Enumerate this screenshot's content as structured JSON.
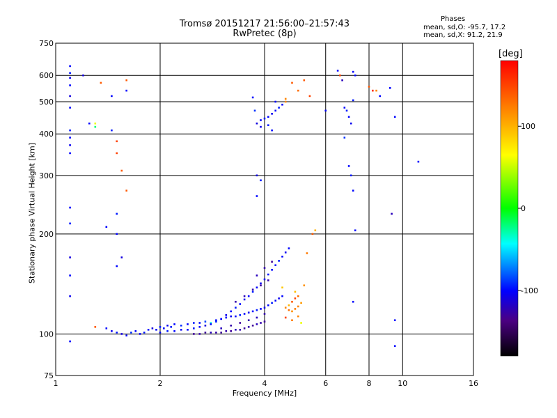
{
  "title": "Tromsø 20151217 21:56:00–21:57:43",
  "subtitle": "RwPretec (8p)",
  "info": {
    "heading": "Phases",
    "line1": "mean, sd,O: -95.7, 17.2",
    "line2": "mean, sd,X:  91.2, 21.9"
  },
  "colorbar": {
    "unit": "[deg]",
    "ticks": [
      "100",
      "0",
      "-100"
    ],
    "tick_values": [
      100,
      0,
      -100
    ],
    "range": [
      -180,
      180
    ]
  },
  "chart_data": {
    "type": "scatter",
    "title": "Tromsø 20151217 21:56:00–21:57:43",
    "subtitle": "RwPretec (8p)",
    "xlabel": "Frequency [MHz]",
    "ylabel": "Stationary phase Virtual Height [km]",
    "xscale": "log",
    "yscale": "log",
    "xlim": [
      1,
      16
    ],
    "ylim": [
      75,
      750
    ],
    "xticks": [
      1,
      2,
      4,
      6,
      8,
      10,
      16
    ],
    "xtick_labels": [
      "1",
      "2",
      "4",
      "6",
      "8",
      "10",
      "16"
    ],
    "yticks": [
      75,
      100,
      200,
      300,
      400,
      500,
      600,
      750
    ],
    "ytick_labels": [
      "75",
      "100",
      "200",
      "300",
      "400",
      "500",
      "600",
      "750"
    ],
    "grid": true,
    "color_variable": "phase [deg]",
    "points": [
      [
        1.4,
        104,
        -100
      ],
      [
        1.45,
        102,
        -105
      ],
      [
        1.5,
        101,
        -95
      ],
      [
        1.55,
        100,
        -110
      ],
      [
        1.6,
        99,
        -100
      ],
      [
        1.65,
        101,
        -90
      ],
      [
        1.7,
        102,
        -100
      ],
      [
        1.75,
        100,
        -105
      ],
      [
        1.8,
        101,
        -95
      ],
      [
        1.85,
        103,
        -100
      ],
      [
        1.9,
        104,
        -110
      ],
      [
        1.95,
        103,
        -100
      ],
      [
        2.0,
        105,
        -95
      ],
      [
        2.05,
        104,
        -100
      ],
      [
        2.1,
        106,
        -105
      ],
      [
        2.15,
        105,
        -95
      ],
      [
        2.2,
        107,
        -100
      ],
      [
        2.3,
        106,
        -90
      ],
      [
        2.4,
        107,
        -100
      ],
      [
        2.5,
        108,
        -95
      ],
      [
        2.6,
        108,
        -100
      ],
      [
        2.7,
        109,
        -85
      ],
      [
        2.8,
        108,
        -40
      ],
      [
        2.9,
        110,
        -100
      ],
      [
        3.0,
        111,
        -95
      ],
      [
        3.1,
        112,
        -100
      ],
      [
        3.2,
        113,
        -105
      ],
      [
        3.3,
        113,
        -100
      ],
      [
        3.4,
        114,
        -95
      ],
      [
        3.5,
        115,
        -100
      ],
      [
        3.6,
        116,
        -105
      ],
      [
        3.7,
        117,
        -100
      ],
      [
        3.8,
        118,
        -95
      ],
      [
        3.9,
        119,
        -100
      ],
      [
        4.0,
        120,
        -105
      ],
      [
        4.1,
        122,
        -100
      ],
      [
        4.2,
        124,
        -95
      ],
      [
        4.3,
        126,
        -100
      ],
      [
        4.4,
        128,
        -105
      ],
      [
        4.5,
        130,
        -100
      ],
      [
        2.0,
        101,
        -100
      ],
      [
        2.1,
        102,
        -95
      ],
      [
        2.2,
        102,
        -100
      ],
      [
        2.3,
        103,
        -105
      ],
      [
        2.4,
        103,
        -100
      ],
      [
        2.5,
        104,
        -95
      ],
      [
        2.6,
        105,
        -100
      ],
      [
        2.7,
        106,
        -110
      ],
      [
        2.8,
        107,
        -100
      ],
      [
        2.9,
        109,
        -95
      ],
      [
        3.0,
        111,
        -100
      ],
      [
        3.1,
        114,
        -105
      ],
      [
        3.2,
        117,
        -100
      ],
      [
        3.3,
        120,
        -95
      ],
      [
        3.4,
        123,
        -100
      ],
      [
        3.5,
        127,
        -105
      ],
      [
        3.6,
        130,
        -100
      ],
      [
        3.7,
        134,
        -95
      ],
      [
        3.8,
        138,
        -100
      ],
      [
        3.9,
        142,
        -105
      ],
      [
        4.0,
        146,
        -100
      ],
      [
        4.1,
        151,
        -95
      ],
      [
        4.2,
        156,
        -100
      ],
      [
        4.3,
        161,
        -100
      ],
      [
        4.4,
        166,
        -95
      ],
      [
        4.5,
        171,
        -100
      ],
      [
        4.6,
        176,
        -105
      ],
      [
        4.7,
        181,
        -100
      ],
      [
        2.5,
        100,
        -130
      ],
      [
        2.6,
        100,
        -125
      ],
      [
        2.7,
        101,
        -130
      ],
      [
        2.8,
        101,
        -120
      ],
      [
        2.9,
        101,
        -125
      ],
      [
        3.0,
        101,
        -130
      ],
      [
        3.1,
        102,
        -125
      ],
      [
        3.2,
        102,
        -130
      ],
      [
        3.3,
        103,
        -120
      ],
      [
        3.4,
        103,
        -125
      ],
      [
        3.5,
        104,
        -130
      ],
      [
        3.6,
        105,
        -125
      ],
      [
        3.7,
        106,
        -130
      ],
      [
        3.8,
        107,
        -120
      ],
      [
        3.9,
        108,
        -125
      ],
      [
        4.0,
        109,
        -130
      ],
      [
        3.0,
        104,
        -120
      ],
      [
        3.2,
        106,
        -125
      ],
      [
        3.4,
        108,
        -130
      ],
      [
        3.6,
        110,
        -125
      ],
      [
        3.8,
        112,
        -120
      ],
      [
        4.0,
        115,
        -125
      ],
      [
        3.3,
        125,
        -125
      ],
      [
        3.5,
        130,
        -120
      ],
      [
        3.7,
        136,
        -125
      ],
      [
        3.9,
        140,
        -130
      ],
      [
        4.1,
        145,
        -125
      ],
      [
        3.8,
        150,
        -120
      ],
      [
        4.0,
        158,
        -125
      ],
      [
        4.2,
        165,
        -130
      ],
      [
        4.6,
        120,
        120
      ],
      [
        4.7,
        118,
        130
      ],
      [
        4.8,
        117,
        115
      ],
      [
        4.9,
        119,
        125
      ],
      [
        5.0,
        121,
        120
      ],
      [
        5.1,
        124,
        110
      ],
      [
        4.7,
        122,
        100
      ],
      [
        4.8,
        125,
        140
      ],
      [
        4.9,
        128,
        150
      ],
      [
        5.0,
        130,
        130
      ],
      [
        4.6,
        112,
        150
      ],
      [
        4.8,
        110,
        125
      ],
      [
        5.0,
        113,
        120
      ],
      [
        5.1,
        108,
        60
      ],
      [
        5.2,
        140,
        115
      ],
      [
        5.3,
        175,
        125
      ],
      [
        5.5,
        200,
        140
      ],
      [
        5.6,
        205,
        100
      ],
      [
        4.9,
        134,
        95
      ],
      [
        4.5,
        138,
        90
      ],
      [
        3.8,
        430,
        -110
      ],
      [
        3.9,
        440,
        -100
      ],
      [
        4.0,
        445,
        -95
      ],
      [
        4.1,
        450,
        -100
      ],
      [
        4.2,
        460,
        -105
      ],
      [
        4.3,
        470,
        -100
      ],
      [
        4.4,
        480,
        -95
      ],
      [
        4.5,
        490,
        -100
      ],
      [
        3.9,
        420,
        -105
      ],
      [
        4.1,
        425,
        -95
      ],
      [
        4.3,
        500,
        -100
      ],
      [
        4.2,
        410,
        -100
      ],
      [
        4.6,
        500,
        120
      ],
      [
        5.0,
        540,
        130
      ],
      [
        4.8,
        570,
        140
      ],
      [
        3.7,
        515,
        -100
      ],
      [
        3.75,
        470,
        -90
      ],
      [
        3.8,
        300,
        -110
      ],
      [
        3.8,
        260,
        -100
      ],
      [
        3.9,
        290,
        -95
      ],
      [
        1.1,
        640,
        -100
      ],
      [
        1.1,
        610,
        -95
      ],
      [
        1.1,
        590,
        -105
      ],
      [
        1.1,
        560,
        -100
      ],
      [
        1.1,
        520,
        -110
      ],
      [
        1.1,
        480,
        -100
      ],
      [
        1.1,
        410,
        -95
      ],
      [
        1.1,
        390,
        -100
      ],
      [
        1.1,
        370,
        -105
      ],
      [
        1.1,
        350,
        -100
      ],
      [
        1.1,
        240,
        -100
      ],
      [
        1.1,
        215,
        -95
      ],
      [
        1.1,
        170,
        -110
      ],
      [
        1.1,
        150,
        -100
      ],
      [
        1.1,
        130,
        -105
      ],
      [
        1.1,
        95,
        -100
      ],
      [
        1.2,
        600,
        -110
      ],
      [
        1.25,
        430,
        -100
      ],
      [
        1.3,
        430,
        60
      ],
      [
        1.3,
        420,
        -20
      ],
      [
        1.35,
        570,
        140
      ],
      [
        1.45,
        520,
        -100
      ],
      [
        1.45,
        410,
        -95
      ],
      [
        1.5,
        380,
        150
      ],
      [
        1.5,
        350,
        150
      ],
      [
        1.5,
        200,
        -100
      ],
      [
        1.5,
        160,
        -100
      ],
      [
        1.55,
        170,
        -110
      ],
      [
        1.6,
        580,
        140
      ],
      [
        1.6,
        540,
        -100
      ],
      [
        1.6,
        270,
        140
      ],
      [
        1.55,
        310,
        140
      ],
      [
        1.4,
        210,
        -100
      ],
      [
        1.5,
        230,
        -95
      ],
      [
        1.3,
        105,
        140
      ],
      [
        6.5,
        620,
        -100
      ],
      [
        6.6,
        600,
        150
      ],
      [
        6.7,
        580,
        -120
      ],
      [
        6.8,
        480,
        -100
      ],
      [
        6.9,
        470,
        -95
      ],
      [
        7.0,
        450,
        -100
      ],
      [
        7.1,
        430,
        -105
      ],
      [
        7.2,
        615,
        -100
      ],
      [
        7.2,
        505,
        -95
      ],
      [
        7.3,
        600,
        -100
      ],
      [
        7.0,
        320,
        -100
      ],
      [
        7.1,
        300,
        -95
      ],
      [
        7.2,
        270,
        -100
      ],
      [
        7.2,
        125,
        -100
      ],
      [
        7.3,
        205,
        -100
      ],
      [
        8.0,
        555,
        140
      ],
      [
        8.2,
        540,
        160
      ],
      [
        8.4,
        540,
        120
      ],
      [
        8.6,
        520,
        -100
      ],
      [
        9.2,
        550,
        -100
      ],
      [
        9.5,
        450,
        -100
      ],
      [
        9.3,
        230,
        -120
      ],
      [
        9.5,
        110,
        -100
      ],
      [
        9.5,
        92,
        -100
      ],
      [
        11.1,
        330,
        -100
      ],
      [
        6.8,
        390,
        -90
      ],
      [
        6.0,
        470,
        -100
      ],
      [
        5.2,
        580,
        140
      ],
      [
        5.4,
        520,
        150
      ],
      [
        4.6,
        510,
        120
      ]
    ]
  }
}
